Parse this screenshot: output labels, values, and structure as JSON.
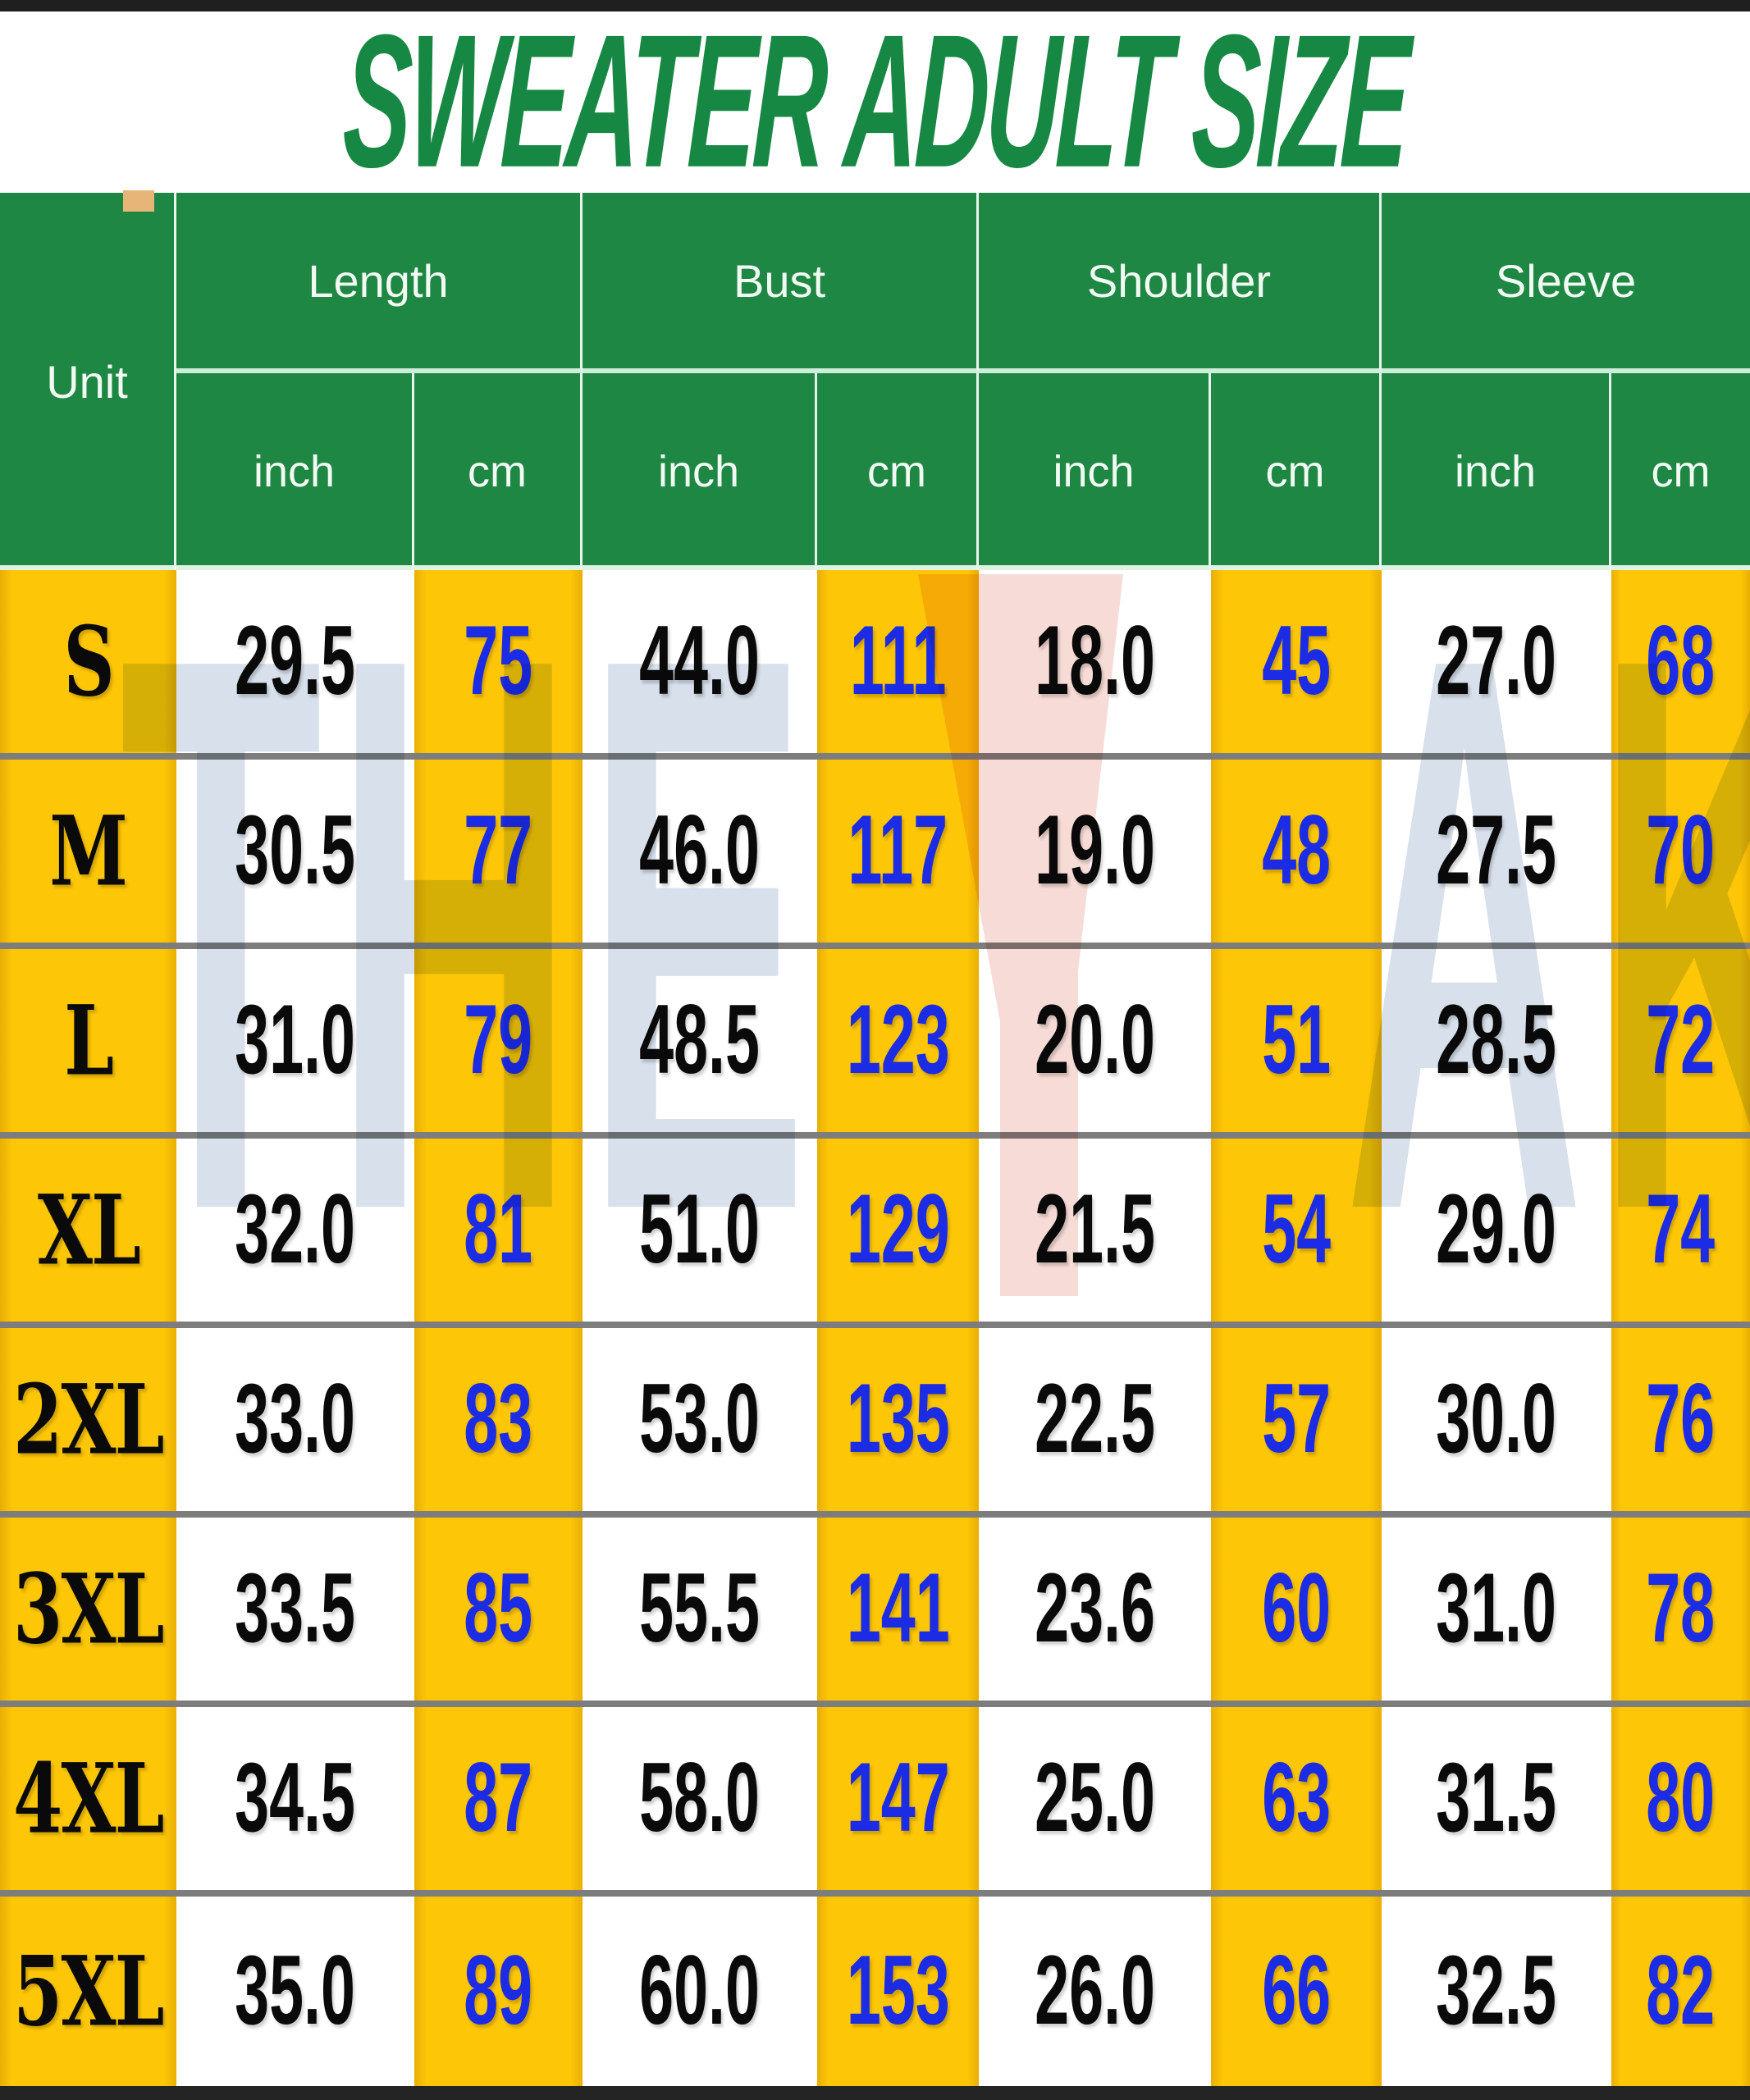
{
  "title": "SWEATER ADULT SIZE",
  "colors": {
    "title_green": "#178843",
    "header_green": "#1e8743",
    "accent_yellow": "#fdc606",
    "cm_value_blue": "#1c2be4",
    "inch_value_black": "#0a0a0a",
    "row_separator_gray": "#7d7d7d"
  },
  "watermark": {
    "left_text": "THE",
    "right_text": "AKACOM",
    "logo": "triangle-y-mark"
  },
  "table": {
    "unit_label": "Unit",
    "groups": [
      "Length",
      "Bust",
      "Shoulder",
      "Sleeve"
    ],
    "sub_labels": [
      "inch",
      "cm"
    ],
    "rows": [
      {
        "size": "S",
        "values": [
          "29.5",
          "75",
          "44.0",
          "111",
          "18.0",
          "45",
          "27.0",
          "68"
        ]
      },
      {
        "size": "M",
        "values": [
          "30.5",
          "77",
          "46.0",
          "117",
          "19.0",
          "48",
          "27.5",
          "70"
        ]
      },
      {
        "size": "L",
        "values": [
          "31.0",
          "79",
          "48.5",
          "123",
          "20.0",
          "51",
          "28.5",
          "72"
        ]
      },
      {
        "size": "XL",
        "values": [
          "32.0",
          "81",
          "51.0",
          "129",
          "21.5",
          "54",
          "29.0",
          "74"
        ]
      },
      {
        "size": "2XL",
        "values": [
          "33.0",
          "83",
          "53.0",
          "135",
          "22.5",
          "57",
          "30.0",
          "76"
        ]
      },
      {
        "size": "3XL",
        "values": [
          "33.5",
          "85",
          "55.5",
          "141",
          "23.6",
          "60",
          "31.0",
          "78"
        ]
      },
      {
        "size": "4XL",
        "values": [
          "34.5",
          "87",
          "58.0",
          "147",
          "25.0",
          "63",
          "31.5",
          "80"
        ]
      },
      {
        "size": "5XL",
        "values": [
          "35.0",
          "89",
          "60.0",
          "153",
          "26.0",
          "66",
          "32.5",
          "82"
        ]
      }
    ]
  },
  "chart_data": {
    "type": "table",
    "title": "SWEATER ADULT SIZE",
    "columns": [
      "Unit",
      "Length inch",
      "Length cm",
      "Bust inch",
      "Bust cm",
      "Shoulder inch",
      "Shoulder cm",
      "Sleeve inch",
      "Sleeve cm"
    ],
    "rows": [
      [
        "S",
        29.5,
        75,
        44.0,
        111,
        18.0,
        45,
        27.0,
        68
      ],
      [
        "M",
        30.5,
        77,
        46.0,
        117,
        19.0,
        48,
        27.5,
        70
      ],
      [
        "L",
        31.0,
        79,
        48.5,
        123,
        20.0,
        51,
        28.5,
        72
      ],
      [
        "XL",
        32.0,
        81,
        51.0,
        129,
        21.5,
        54,
        29.0,
        74
      ],
      [
        "2XL",
        33.0,
        83,
        53.0,
        135,
        22.5,
        57,
        30.0,
        76
      ],
      [
        "3XL",
        33.5,
        85,
        55.5,
        141,
        23.6,
        60,
        31.0,
        78
      ],
      [
        "4XL",
        34.5,
        87,
        58.0,
        147,
        25.0,
        63,
        31.5,
        80
      ],
      [
        "5XL",
        35.0,
        89,
        60.0,
        153,
        26.0,
        66,
        32.5,
        82
      ]
    ]
  }
}
